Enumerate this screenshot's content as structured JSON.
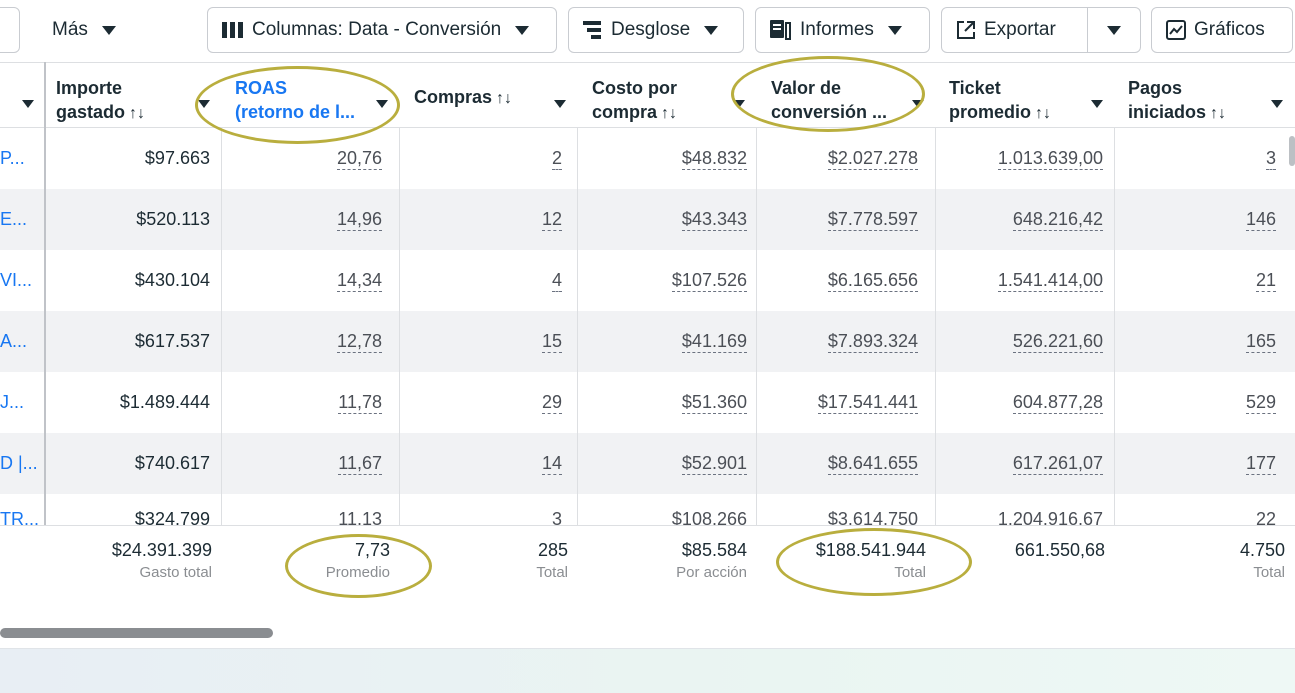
{
  "toolbar": {
    "mas": "Más",
    "columns": "Columnas: Data - Conversión",
    "breakdown": "Desglose",
    "reports": "Informes",
    "export": "Exportar",
    "charts": "Gráficos"
  },
  "headers": [
    {
      "line1": "Importe",
      "line2": "gastado"
    },
    {
      "line1": "ROAS",
      "line2": "(retorno de l..."
    },
    {
      "line1": "Compras",
      "line2": ""
    },
    {
      "line1": "Costo por",
      "line2": "compra"
    },
    {
      "line1": "Valor de",
      "line2": "conversión ..."
    },
    {
      "line1": "Ticket",
      "line2": "promedio"
    },
    {
      "line1": "Pagos",
      "line2": "iniciados"
    }
  ],
  "sort_glyph": "↑↓",
  "rows": [
    {
      "name": "P...",
      "spent": "$97.663",
      "roas": "20,76",
      "purchases": "2",
      "cpp": "$48.832",
      "value": "$2.027.278",
      "ticket": "1.013.639,00",
      "checkouts": "3"
    },
    {
      "name": "E...",
      "spent": "$520.113",
      "roas": "14,96",
      "purchases": "12",
      "cpp": "$43.343",
      "value": "$7.778.597",
      "ticket": "648.216,42",
      "checkouts": "146"
    },
    {
      "name": "VI...",
      "spent": "$430.104",
      "roas": "14,34",
      "purchases": "4",
      "cpp": "$107.526",
      "value": "$6.165.656",
      "ticket": "1.541.414,00",
      "checkouts": "21"
    },
    {
      "name": "A...",
      "spent": "$617.537",
      "roas": "12,78",
      "purchases": "15",
      "cpp": "$41.169",
      "value": "$7.893.324",
      "ticket": "526.221,60",
      "checkouts": "165"
    },
    {
      "name": "J...",
      "spent": "$1.489.444",
      "roas": "11,78",
      "purchases": "29",
      "cpp": "$51.360",
      "value": "$17.541.441",
      "ticket": "604.877,28",
      "checkouts": "529"
    },
    {
      "name": "D |...",
      "spent": "$740.617",
      "roas": "11,67",
      "purchases": "14",
      "cpp": "$52.901",
      "value": "$8.641.655",
      "ticket": "617.261,07",
      "checkouts": "177"
    },
    {
      "name": "TR...",
      "spent": "$324.799",
      "roas": "11,13",
      "purchases": "3",
      "cpp": "$108.266",
      "value": "$3.614.750",
      "ticket": "1.204.916,67",
      "checkouts": "22"
    }
  ],
  "totals": [
    {
      "value": "$24.391.399",
      "label": "Gasto total"
    },
    {
      "value": "7,73",
      "label": "Promedio"
    },
    {
      "value": "285",
      "label": "Total"
    },
    {
      "value": "$85.584",
      "label": "Por acción"
    },
    {
      "value": "$188.541.944",
      "label": "Total"
    },
    {
      "value": "661.550,68",
      "label": ""
    },
    {
      "value": "4.750",
      "label": "Total"
    }
  ],
  "colors": {
    "accent": "#1877f2",
    "annotation": "#b9ae3e"
  },
  "icons": [
    "caret-down-icon",
    "columns-icon",
    "breakdown-icon",
    "reports-icon",
    "export-icon",
    "charts-icon"
  ]
}
